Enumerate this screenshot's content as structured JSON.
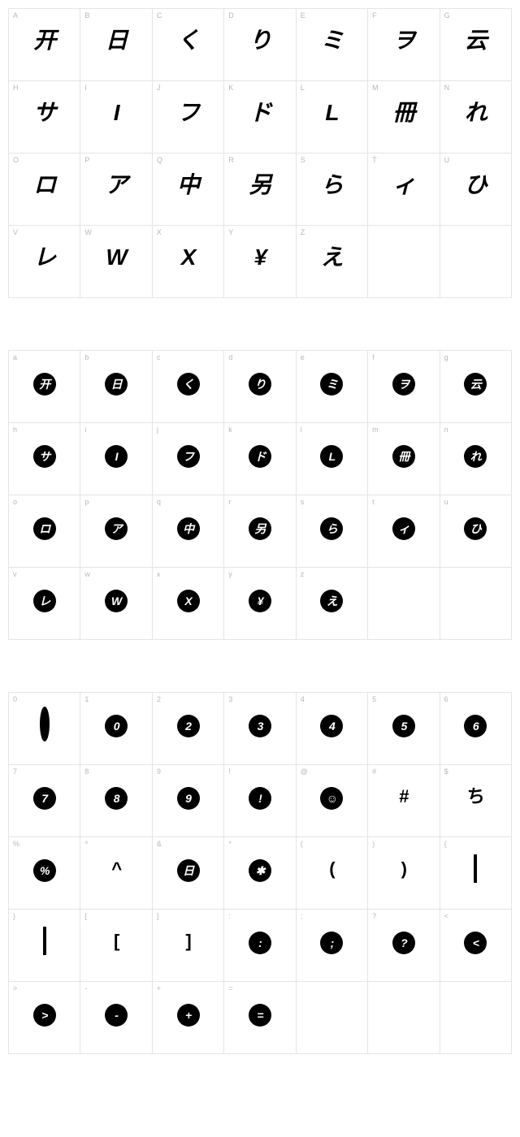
{
  "grids": [
    {
      "style": "open",
      "cells": [
        {
          "label": "A",
          "glyph": "开"
        },
        {
          "label": "B",
          "glyph": "日"
        },
        {
          "label": "C",
          "glyph": "く"
        },
        {
          "label": "D",
          "glyph": "り"
        },
        {
          "label": "E",
          "glyph": "ミ"
        },
        {
          "label": "F",
          "glyph": "ヲ"
        },
        {
          "label": "G",
          "glyph": "云"
        },
        {
          "label": "H",
          "glyph": "サ"
        },
        {
          "label": "I",
          "glyph": "I"
        },
        {
          "label": "J",
          "glyph": "フ"
        },
        {
          "label": "K",
          "glyph": "ド"
        },
        {
          "label": "L",
          "glyph": "L"
        },
        {
          "label": "M",
          "glyph": "冊"
        },
        {
          "label": "N",
          "glyph": "れ"
        },
        {
          "label": "O",
          "glyph": "ロ"
        },
        {
          "label": "P",
          "glyph": "ア"
        },
        {
          "label": "Q",
          "glyph": "中"
        },
        {
          "label": "R",
          "glyph": "另"
        },
        {
          "label": "S",
          "glyph": "ら"
        },
        {
          "label": "T",
          "glyph": "ィ"
        },
        {
          "label": "U",
          "glyph": "ひ"
        },
        {
          "label": "V",
          "glyph": "レ"
        },
        {
          "label": "W",
          "glyph": "W"
        },
        {
          "label": "X",
          "glyph": "X"
        },
        {
          "label": "Y",
          "glyph": "¥"
        },
        {
          "label": "Z",
          "glyph": "え"
        }
      ],
      "pad": 2
    },
    {
      "style": "circle",
      "cells": [
        {
          "label": "a",
          "glyph": "开"
        },
        {
          "label": "b",
          "glyph": "日"
        },
        {
          "label": "c",
          "glyph": "く"
        },
        {
          "label": "d",
          "glyph": "り"
        },
        {
          "label": "e",
          "glyph": "ミ"
        },
        {
          "label": "f",
          "glyph": "ヲ"
        },
        {
          "label": "g",
          "glyph": "云"
        },
        {
          "label": "h",
          "glyph": "サ"
        },
        {
          "label": "i",
          "glyph": "I"
        },
        {
          "label": "j",
          "glyph": "フ"
        },
        {
          "label": "k",
          "glyph": "ド"
        },
        {
          "label": "l",
          "glyph": "L"
        },
        {
          "label": "m",
          "glyph": "冊"
        },
        {
          "label": "n",
          "glyph": "れ"
        },
        {
          "label": "o",
          "glyph": "ロ"
        },
        {
          "label": "p",
          "glyph": "ア"
        },
        {
          "label": "q",
          "glyph": "中"
        },
        {
          "label": "r",
          "glyph": "另"
        },
        {
          "label": "s",
          "glyph": "ら"
        },
        {
          "label": "t",
          "glyph": "ィ"
        },
        {
          "label": "u",
          "glyph": "ひ"
        },
        {
          "label": "v",
          "glyph": "レ"
        },
        {
          "label": "w",
          "glyph": "W"
        },
        {
          "label": "x",
          "glyph": "X"
        },
        {
          "label": "y",
          "glyph": "¥"
        },
        {
          "label": "z",
          "glyph": "え"
        }
      ],
      "pad": 2
    },
    {
      "style": "mixed",
      "cells": [
        {
          "label": "0",
          "type": "ring"
        },
        {
          "label": "1",
          "type": "circle",
          "glyph": "0"
        },
        {
          "label": "2",
          "type": "circle",
          "glyph": "2"
        },
        {
          "label": "3",
          "type": "circle",
          "glyph": "3"
        },
        {
          "label": "4",
          "type": "circle",
          "glyph": "4"
        },
        {
          "label": "5",
          "type": "circle",
          "glyph": "5"
        },
        {
          "label": "6",
          "type": "circle",
          "glyph": "6"
        },
        {
          "label": "7",
          "type": "circle",
          "glyph": "7"
        },
        {
          "label": "8",
          "type": "circle",
          "glyph": "8"
        },
        {
          "label": "9",
          "type": "circle",
          "glyph": "9"
        },
        {
          "label": "!",
          "type": "circle",
          "glyph": "!"
        },
        {
          "label": "@",
          "type": "circle",
          "glyph": "☺"
        },
        {
          "label": "#",
          "type": "open",
          "glyph": "#"
        },
        {
          "label": "$",
          "type": "open",
          "glyph": "ち"
        },
        {
          "label": "%",
          "type": "circle",
          "glyph": "%"
        },
        {
          "label": "^",
          "type": "open",
          "glyph": "^"
        },
        {
          "label": "&",
          "type": "circle",
          "glyph": "日"
        },
        {
          "label": "*",
          "type": "circle",
          "glyph": "✱"
        },
        {
          "label": "(",
          "type": "open",
          "glyph": "("
        },
        {
          "label": ")",
          "type": "open",
          "glyph": ")"
        },
        {
          "label": "{",
          "type": "box"
        },
        {
          "label": "}",
          "type": "box"
        },
        {
          "label": "[",
          "type": "open",
          "glyph": "["
        },
        {
          "label": "]",
          "type": "open",
          "glyph": "]"
        },
        {
          "label": ":",
          "type": "circle",
          "glyph": ":"
        },
        {
          "label": ";",
          "type": "circle",
          "glyph": ";"
        },
        {
          "label": "?",
          "type": "circle",
          "glyph": "?"
        },
        {
          "label": "<",
          "type": "circle",
          "glyph": "<"
        },
        {
          "label": ">",
          "type": "circle",
          "glyph": ">"
        },
        {
          "label": "-",
          "type": "circle",
          "glyph": "-"
        },
        {
          "label": "+",
          "type": "circle",
          "glyph": "+"
        },
        {
          "label": "=",
          "type": "circle",
          "glyph": "="
        }
      ],
      "pad": 3
    }
  ],
  "colors": {
    "border": "#e5e5e5",
    "label": "#b8b8b8",
    "glyph": "#000000",
    "background": "#ffffff"
  }
}
